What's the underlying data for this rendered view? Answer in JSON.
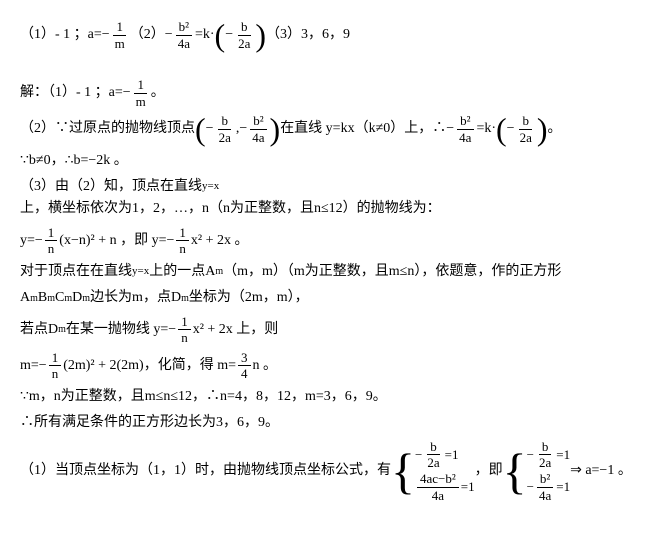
{
  "line1": {
    "p1": "（1）- 1 ；a=−",
    "f1n": "1",
    "f1d": "m",
    "p2": " （2）−",
    "f2n": "b²",
    "f2d": "4a",
    "p3": "=k·",
    "p4": "−",
    "f3n": "b",
    "f3d": "2a",
    "p5": "（3）3，6，9"
  },
  "line2": {
    "p1": "解：（1）- 1 ；a=−",
    "f1n": "1",
    "f1d": "m",
    "p2": " 。"
  },
  "line3": {
    "p1": "（2）∵过原点的抛物线顶点",
    "p2": "−",
    "f1n": "b",
    "f1d": "2a",
    "p3": ",−",
    "f2n": "b²",
    "f2d": "4a",
    "p4": "在直线 y=kx（k≠0）上，∴−",
    "f3n": "b²",
    "f3d": "4a",
    "p5": "=k·",
    "p6": "−",
    "f4n": "b",
    "f4d": "2a",
    "p7": "。"
  },
  "line4": "∵b≠0，∴b=−2k 。",
  "line5": {
    "p1": "（3）由（2）知，顶点在直线 ",
    "yx": "y=x",
    "p2": " 上，横坐标依次为1，2，…，n（n为正整数，且n≤12）的抛物线为："
  },
  "line6": {
    "p1": "y=−",
    "f1n": "1",
    "f1d": "n",
    "p2": "(x−n)² + n ，即 y=−",
    "f2n": "1",
    "f2d": "n",
    "p3": "x² + 2x 。"
  },
  "line7": {
    "p1": "对于顶点在在直线 ",
    "yx": "y=x",
    "p2": " 上的一点A",
    "sub1": "m",
    "p3": "（m，m）（m为正整数，且m≤n），依题意，作的正方形"
  },
  "line8": {
    "p1": "A",
    "s1": "m",
    "p2": "B",
    "s2": "m",
    "p3": "C",
    "s3": "m",
    "p4": "D",
    "s4": "m",
    "p5": "边长为m，点D",
    "s5": "m",
    "p6": "坐标为（2m，m），"
  },
  "line9": {
    "p1": "若点D",
    "s1": "m",
    "p2": "在某一抛物线 y=−",
    "f1n": "1",
    "f1d": "n",
    "p3": "x² + 2x 上，则"
  },
  "line10": {
    "p1": "m=−",
    "f1n": "1",
    "f1d": "n",
    "p2": "(2m)² + 2(2m)，化简，得 m=",
    "f2n": "3",
    "f2d": "4",
    "p3": "n 。"
  },
  "line11": "∵m，n为正整数，且m≤n≤12，∴n=4，8，12，m=3，6，9。",
  "line12": "∴所有满足条件的正方形边长为3，6，9。",
  "line13": {
    "p1": "（1）当顶点坐标为（1，1）时，由抛物线顶点坐标公式，有",
    "b1r1a": "−",
    "b1r1fn": "b",
    "b1r1fd": "2a",
    "b1r1b": "=1",
    "b1r2fn": "4ac−b²",
    "b1r2fd": "4a",
    "b1r2b": "=1",
    "p2": "，即",
    "b2r1a": "−",
    "b2r1fn": "b",
    "b2r1fd": "2a",
    "b2r1b": "=1",
    "b2r2a": "−",
    "b2r2fn": "b²",
    "b2r2fd": "4a",
    "b2r2b": "=1",
    "p3": " ⇒ a=−1 。"
  }
}
